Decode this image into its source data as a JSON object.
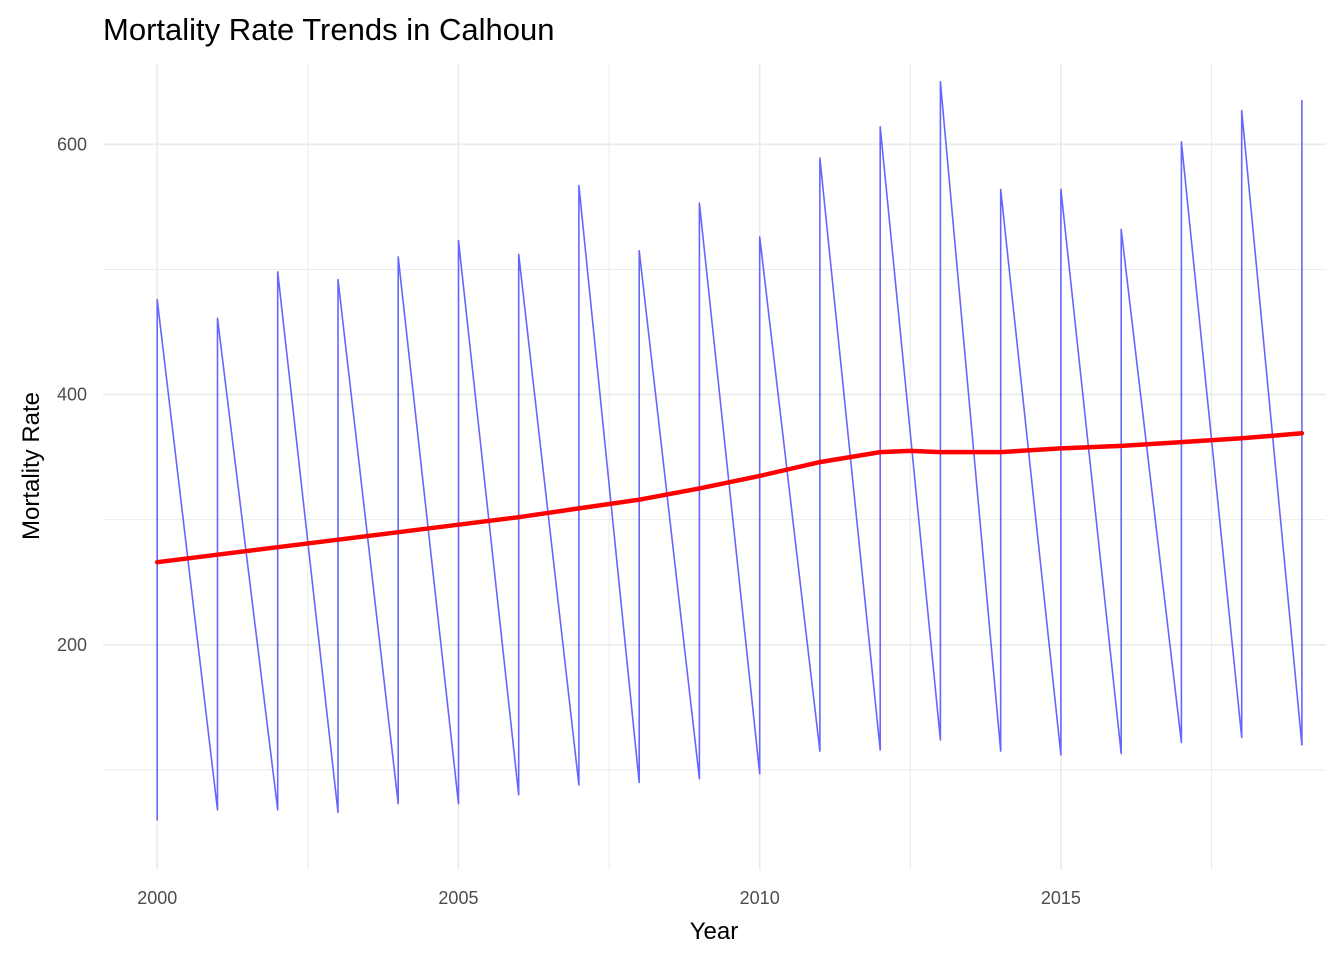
{
  "chart_data": {
    "type": "line",
    "title": "Mortality Rate Trends in Calhoun",
    "xlabel": "Year",
    "ylabel": "Mortality Rate",
    "xlim": [
      1999.1,
      2019.4
    ],
    "ylim": [
      20,
      665
    ],
    "x_ticks": [
      2000,
      2005,
      2010,
      2015
    ],
    "y_ticks": [
      200,
      400,
      600
    ],
    "grid": true,
    "series": [
      {
        "color": "#6666ff",
        "style": "thin",
        "x": [
          2000,
          2000,
          2001,
          2001,
          2002,
          2002,
          2003,
          2003,
          2004,
          2004,
          2005,
          2005,
          2006,
          2006,
          2007,
          2007,
          2008,
          2008,
          2009,
          2009,
          2010,
          2010,
          2011,
          2011,
          2012,
          2012,
          2013,
          2013,
          2014,
          2014,
          2015,
          2015,
          2016,
          2016,
          2017,
          2017,
          2018,
          2018,
          2019,
          2019
        ],
        "y": [
          60,
          476,
          68,
          461,
          68,
          498,
          66,
          492,
          73,
          510,
          73,
          523,
          80,
          512,
          88,
          567,
          90,
          515,
          93,
          553,
          97,
          526,
          115,
          589,
          116,
          614,
          124,
          650,
          115,
          564,
          112,
          564,
          113,
          532,
          122,
          602,
          126,
          627,
          120,
          635
        ]
      },
      {
        "color": "#ff0000",
        "style": "thick",
        "x": [
          2000,
          2001,
          2002,
          2003,
          2004,
          2005,
          2006,
          2007,
          2008,
          2009,
          2010,
          2011,
          2012,
          2012.5,
          2013,
          2014,
          2015,
          2016,
          2017,
          2018,
          2019
        ],
        "y": [
          266,
          272,
          278,
          284,
          290,
          296,
          302,
          309,
          316,
          325,
          335,
          346,
          354,
          355,
          354,
          354,
          357,
          359,
          362,
          365,
          369
        ]
      }
    ]
  }
}
